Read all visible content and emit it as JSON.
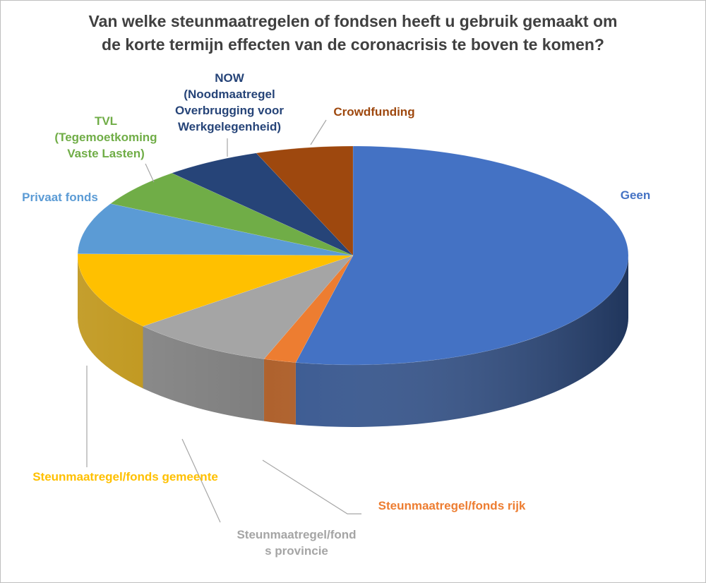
{
  "chart_data": {
    "type": "pie",
    "title": "Van welke steunmaatregelen of fondsen heeft u gebruik gemaakt om de korte termijn effecten van de coronacrisis te boven te komen?",
    "title_lines": [
      "Van welke steunmaatregelen of fondsen heeft u gebruik gemaakt om",
      "de korte termijn effecten van de coronacrisis te boven te komen?"
    ],
    "style": "3d",
    "slices": [
      {
        "label": "Geen",
        "value": 56,
        "color": "#4472C4"
      },
      {
        "label": "Steunmaatregel/fonds rijk",
        "value": 2,
        "color": "#ED7D31"
      },
      {
        "label": "Steunmaatregel/fond\ns provincie",
        "value": 9,
        "color": "#A5A5A5"
      },
      {
        "label": "Steunmaatregel/fonds gemeente",
        "value": 12,
        "color": "#FFC000"
      },
      {
        "label": "Privaat fonds",
        "value": 8,
        "color": "#5B9BD5"
      },
      {
        "label": "TVL\n(Tegemoetkoming\nVaste Lasten)",
        "value": 6,
        "color": "#70AD47"
      },
      {
        "label": "NOW\n(Noodmaatregel\nOverbrugging voor\nWerkgelegenheid)",
        "value": 6,
        "color": "#264478"
      },
      {
        "label": "Crowdfunding",
        "value": 6,
        "color": "#9E480E"
      }
    ]
  }
}
